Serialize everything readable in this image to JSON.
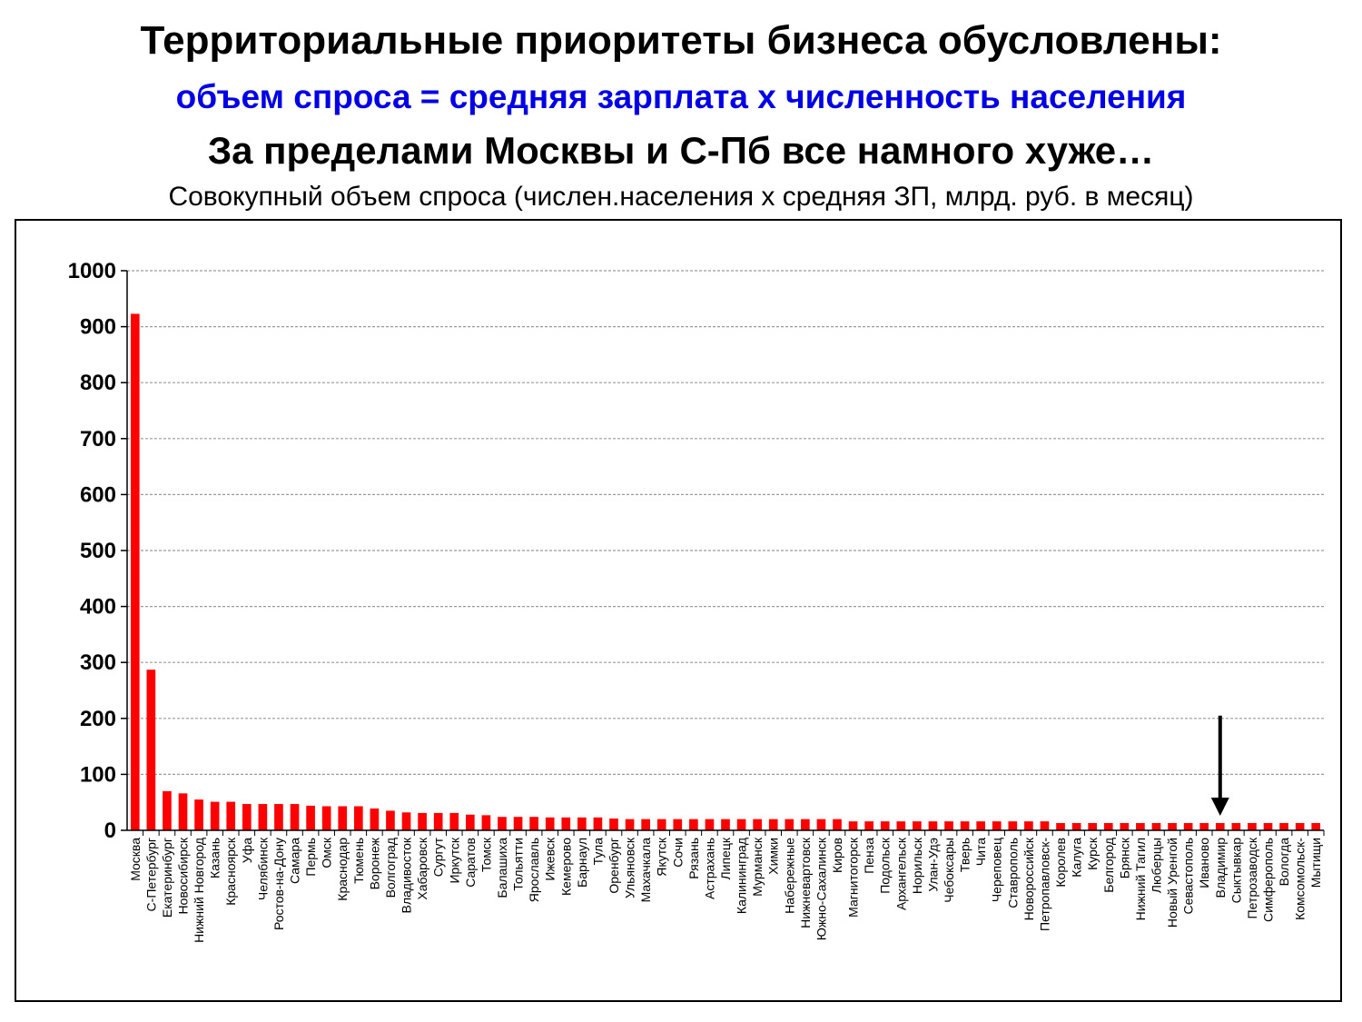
{
  "slide": {
    "title": "Территориальные приоритеты бизнеса обусловлены:",
    "formula": "объем спроса = средняя зарплата х численность населения",
    "statement": "За пределами Москвы и С-Пб все намного хуже…",
    "chart_caption": "Совокупный объем спроса (числен.населения х средняя ЗП, млрд. руб. в месяц)"
  },
  "colors": {
    "bar": "#ff0000",
    "formula_text": "#0000e6",
    "arrow": "#000000",
    "grid": "#9a9a9a"
  },
  "chart_data": {
    "type": "bar",
    "title": "",
    "xlabel": "",
    "ylabel": "",
    "ylim": [
      0,
      1000
    ],
    "yticks": [
      0,
      100,
      200,
      300,
      400,
      500,
      600,
      700,
      800,
      900,
      1000
    ],
    "grid": true,
    "gridline_style": "dashed",
    "legend": "none",
    "highlight_arrow_category": "Владимир",
    "categories": [
      "Москва",
      "С-Петербург",
      "Екатеринбург",
      "Новосибирск",
      "Нижний Новгород",
      "Казань",
      "Красноярск",
      "Уфа",
      "Челябинск",
      "Ростов-на-Дону",
      "Самара",
      "Пермь",
      "Омск",
      "Краснодар",
      "Тюмень",
      "Воронеж",
      "Волгоград",
      "Владивосток",
      "Хабаровск",
      "Сургут",
      "Иркутск",
      "Саратов",
      "Томск",
      "Балашиха",
      "Тольятти",
      "Ярославль",
      "Ижевск",
      "Кемерово",
      "Барнаул",
      "Тула",
      "Оренбург",
      "Ульяновск",
      "Махачкала",
      "Якутск",
      "Сочи",
      "Рязань",
      "Астрахань",
      "Липецк",
      "Калининград",
      "Мурманск",
      "Химки",
      "Набережные",
      "Нижневартовск",
      "Южно-Сахалинск",
      "Киров",
      "Магнитогорск",
      "Пенза",
      "Подольск",
      "Архангельск",
      "Норильск",
      "Улан-Удэ",
      "Чебоксары",
      "Тверь",
      "Чита",
      "Череповец",
      "Ставрополь",
      "Новороссийск",
      "Петропавловск-",
      "Королев",
      "Калуга",
      "Курск",
      "Белгород",
      "Брянск",
      "Нижний Тагил",
      "Люберцы",
      "Новый Уренгой",
      "Севастополь",
      "Иваново",
      "Владимир",
      "Сыктывкар",
      "Петрозаводск",
      "Симферополь",
      "Вологда",
      "Комсомольск-",
      "Мытищи"
    ],
    "values": [
      923,
      287,
      70,
      66,
      55,
      51,
      51,
      47,
      47,
      47,
      47,
      44,
      43,
      43,
      43,
      39,
      35,
      32,
      31,
      31,
      31,
      28,
      27,
      24,
      24,
      24,
      23,
      23,
      23,
      23,
      21,
      20,
      20,
      20,
      20,
      20,
      20,
      20,
      20,
      20,
      20,
      20,
      20,
      20,
      20,
      16,
      16,
      16,
      16,
      16,
      16,
      16,
      16,
      16,
      16,
      16,
      16,
      16,
      13,
      13,
      13,
      13,
      13,
      13,
      13,
      13,
      13,
      13,
      13,
      13,
      13,
      13,
      13,
      13,
      13
    ]
  }
}
